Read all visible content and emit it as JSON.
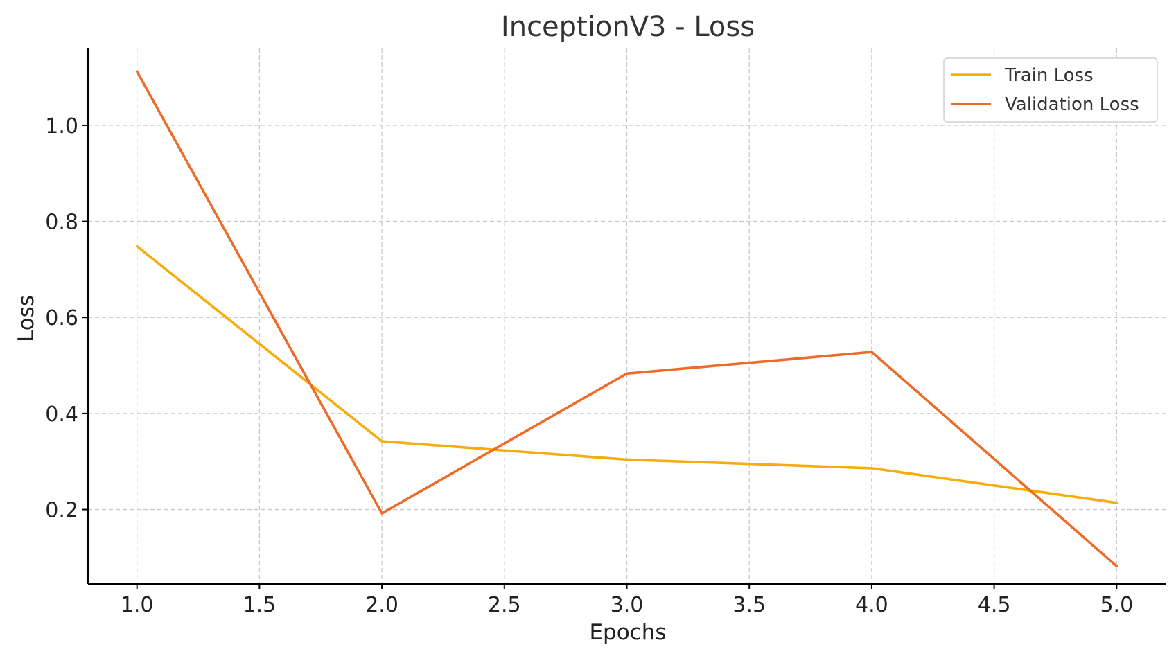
{
  "chart_data": {
    "type": "line",
    "title": "InceptionV3 - Loss",
    "xlabel": "Epochs",
    "ylabel": "Loss",
    "x": [
      1,
      2,
      3,
      4,
      5
    ],
    "xlim": [
      0.8,
      5.2
    ],
    "ylim": [
      0.045,
      1.16
    ],
    "xticks": [
      1.0,
      1.5,
      2.0,
      2.5,
      3.0,
      3.5,
      4.0,
      4.5,
      5.0
    ],
    "xtick_labels": [
      "1.0",
      "1.5",
      "2.0",
      "2.5",
      "3.0",
      "3.5",
      "4.0",
      "4.5",
      "5.0"
    ],
    "yticks": [
      0.2,
      0.4,
      0.6,
      0.8,
      1.0
    ],
    "ytick_labels": [
      "0.2",
      "0.4",
      "0.6",
      "0.8",
      "1.0"
    ],
    "grid": true,
    "legend_position": "top-right",
    "series": [
      {
        "name": "Train Loss",
        "color": "#F7AC0E",
        "values": [
          0.748,
          0.342,
          0.304,
          0.286,
          0.214
        ]
      },
      {
        "name": "Validation Loss",
        "color": "#EE6A28",
        "values": [
          1.112,
          0.192,
          0.483,
          0.528,
          0.082
        ]
      }
    ]
  }
}
